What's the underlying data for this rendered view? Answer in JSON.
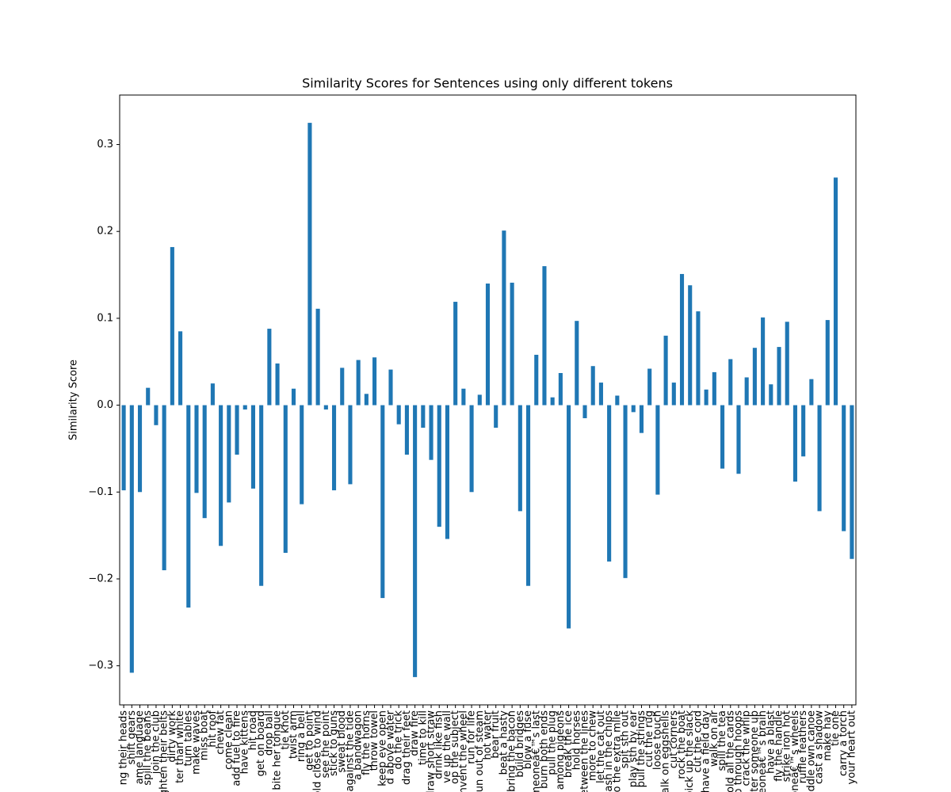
{
  "chart_data": {
    "type": "bar",
    "title": "Similarity Scores for Sentences using only different tokens",
    "ylabel": "Similarity Score",
    "color": "#1f77b4",
    "ylim": [
      -0.345,
      0.357
    ],
    "yticks": [
      {
        "value": -0.3,
        "label": "−0.3"
      },
      {
        "value": -0.2,
        "label": "−0.2"
      },
      {
        "value": -0.1,
        "label": "−0.1"
      },
      {
        "value": 0,
        "label": "0.0"
      },
      0.1,
      0.2,
      0.3
    ],
    "categories": [
      "ng their heads",
      "shift gears",
      "ame language",
      "spill the beans",
      "join the club",
      "tighten their belts",
      "dirty work",
      "ter than white",
      "turn tables",
      "make waves",
      "miss boat",
      "hit roof",
      "chew fat",
      "come clean",
      "add fuel to fire",
      "have kittens",
      "hit road",
      "get on board",
      "drop ball",
      "bite her tongue",
      "tie knot",
      "twist arm",
      "ring a bell",
      "get to point",
      "hold close to wind",
      "see the point",
      "stick to guns",
      "sweat blood",
      "against the tide",
      "a bandwagon",
      "fly the horns",
      "throw towel",
      "keep eye open",
      "d above water",
      "do the trick",
      "drag their feet",
      "draw fire",
      "time to kill",
      "draw short straw",
      "drink like fish",
      "ve up the wall",
      "op the subject",
      "reinvent the wheel",
      "run for life",
      "run out of steam",
      "hot water",
      "bear fruit",
      "beat a hasty",
      "bring the bacon",
      "build bridges",
      "blow a fuse",
      "someoneâ€™s last",
      "burn both ends",
      "pull the plug",
      "among pigeons",
      "break the ice",
      "hold horses",
      "between the lines",
      "more to chew",
      "let the cat out",
      "cash in the chips",
      "go the extra mile",
      "spit sth out",
      "play sth by ear",
      "pull the strings",
      "cut the rug",
      "loose touch",
      "walk on eggshells",
      "cut corners",
      "rock the boat",
      "pick up the slack",
      "cut the cord",
      "have a field day",
      "walk on air",
      "spill the tea",
      "hold all the cards",
      "jump through hoops",
      "crack the whip",
      "butter someone up",
      "someoneâ€™s brain",
      "have a blast",
      "fly the handle",
      "strike iron hot",
      "someoneâ€™s wheels",
      "ruffle feathers",
      "paddle own canoe",
      "cast a shadow",
      "make hay",
      "tie one",
      "carry a torch",
      "your heart out"
    ],
    "values": [
      -0.098,
      -0.308,
      -0.1,
      0.02,
      -0.023,
      -0.19,
      0.182,
      0.085,
      -0.233,
      -0.101,
      -0.13,
      0.025,
      -0.162,
      -0.112,
      -0.057,
      -0.005,
      -0.096,
      -0.208,
      0.088,
      0.048,
      -0.17,
      0.019,
      -0.114,
      0.325,
      0.111,
      -0.005,
      -0.098,
      0.043,
      -0.091,
      0.052,
      0.013,
      0.055,
      -0.222,
      0.041,
      -0.022,
      -0.057,
      -0.313,
      -0.026,
      -0.063,
      -0.14,
      -0.154,
      0.119,
      0.019,
      -0.1,
      0.012,
      0.14,
      -0.026,
      0.201,
      0.141,
      -0.122,
      -0.208,
      0.058,
      0.16,
      0.009,
      0.037,
      -0.257,
      0.097,
      -0.015,
      0.045,
      0.026,
      -0.18,
      0.011,
      -0.199,
      -0.008,
      -0.032,
      0.042,
      -0.103,
      0.08,
      0.026,
      0.151,
      0.138,
      0.108,
      0.018,
      0.038,
      -0.073,
      0.053,
      -0.079,
      0.032,
      0.066,
      0.101,
      0.024,
      0.067,
      0.096,
      -0.088,
      -0.059,
      0.03,
      -0.122,
      0.098,
      0.262,
      -0.145,
      -0.177
    ]
  }
}
